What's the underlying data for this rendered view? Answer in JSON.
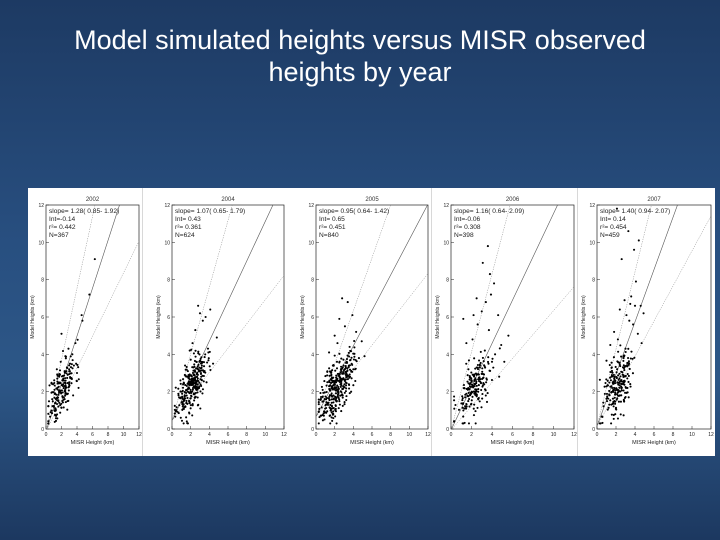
{
  "slide": {
    "title_line1": "Model simulated heights versus MISR observed",
    "title_line2": "heights by year"
  },
  "chart_data": [
    {
      "type": "scatter",
      "title": "2002",
      "xlabel": "MISR Height (km)",
      "ylabel": "Model Heights (km)",
      "xlim": [
        0,
        12
      ],
      "ylim": [
        0,
        12
      ],
      "xticks": [
        0,
        2,
        4,
        6,
        8,
        10,
        12
      ],
      "yticks": [
        0,
        2,
        4,
        6,
        8,
        10,
        12
      ],
      "stats": [
        "slope= 1.28( 0.85- 1.92)",
        "Int=-0.14",
        "r²= 0.442",
        "N=367"
      ],
      "fit": {
        "slope": 1.28,
        "intercept": -0.14,
        "slope_low": 0.85,
        "slope_high": 1.92
      },
      "points": [
        [
          1.8,
          2.0
        ],
        [
          2.2,
          2.3
        ],
        [
          1.5,
          1.7
        ],
        [
          2.8,
          2.9
        ],
        [
          3.1,
          3.5
        ],
        [
          3.6,
          3.4
        ],
        [
          2.5,
          3.9
        ],
        [
          1.2,
          1.4
        ],
        [
          0.8,
          1.6
        ],
        [
          2.9,
          4.3
        ],
        [
          3.4,
          4.0
        ],
        [
          2.3,
          2.6
        ],
        [
          1.1,
          2.1
        ],
        [
          1.7,
          2.8
        ],
        [
          2.6,
          1.9
        ],
        [
          3.8,
          4.6
        ],
        [
          4.2,
          2.2
        ],
        [
          3.5,
          1.8
        ],
        [
          5.6,
          7.2
        ],
        [
          6.3,
          9.1
        ],
        [
          4.7,
          5.8
        ],
        [
          2.0,
          5.1
        ],
        [
          1.6,
          1.2
        ],
        [
          0.6,
          0.9
        ],
        [
          1.4,
          3.2
        ],
        [
          3.0,
          2.5
        ],
        [
          2.4,
          3.1
        ],
        [
          1.9,
          3.6
        ],
        [
          0.9,
          2.4
        ],
        [
          4.0,
          3.0
        ],
        [
          3.3,
          2.7
        ],
        [
          4.6,
          6.1
        ],
        [
          2.1,
          1.5
        ],
        [
          1.3,
          0.7
        ],
        [
          2.7,
          3.3
        ]
      ],
      "cluster": {
        "cx": 2.0,
        "cy": 2.1,
        "sx": 0.9,
        "sy": 0.9,
        "n": 170,
        "seed": 11
      }
    },
    {
      "type": "scatter",
      "title": "2004",
      "xlabel": "MISR Height (km)",
      "ylabel": "Model Heights (km)",
      "xlim": [
        0,
        12
      ],
      "ylim": [
        0,
        12
      ],
      "xticks": [
        0,
        2,
        4,
        6,
        8,
        10,
        12
      ],
      "yticks": [
        0,
        2,
        4,
        6,
        8,
        10,
        12
      ],
      "stats": [
        "slope= 1.07( 0.65- 1.79)",
        "Int= 0.43",
        "r²= 0.361",
        "N=624"
      ],
      "fit": {
        "slope": 1.07,
        "intercept": 0.43,
        "slope_low": 0.65,
        "slope_high": 1.79
      },
      "points": [
        [
          2.5,
          5.3
        ],
        [
          3.0,
          6.2
        ],
        [
          3.6,
          6.0
        ],
        [
          2.8,
          6.6
        ],
        [
          4.1,
          6.4
        ],
        [
          3.3,
          5.8
        ],
        [
          2.2,
          4.6
        ],
        [
          1.9,
          4.2
        ],
        [
          3.9,
          4.1
        ],
        [
          4.4,
          3.5
        ],
        [
          1.4,
          3.4
        ],
        [
          3.1,
          3.0
        ],
        [
          2.6,
          3.6
        ],
        [
          1.7,
          3.1
        ],
        [
          0.9,
          2.6
        ],
        [
          3.7,
          2.5
        ],
        [
          4.8,
          4.9
        ],
        [
          2.3,
          2.9
        ],
        [
          1.2,
          1.3
        ],
        [
          0.7,
          1.8
        ]
      ],
      "cluster": {
        "cx": 2.1,
        "cy": 2.3,
        "sx": 0.8,
        "sy": 0.8,
        "n": 280,
        "seed": 23
      }
    },
    {
      "type": "scatter",
      "title": "2005",
      "xlabel": "MISR Height (km)",
      "ylabel": "Model Heights (km)",
      "xlim": [
        0,
        12
      ],
      "ylim": [
        0,
        12
      ],
      "xticks": [
        0,
        2,
        4,
        6,
        8,
        10,
        12
      ],
      "yticks": [
        0,
        2,
        4,
        6,
        8,
        10,
        12
      ],
      "stats": [
        "slope= 0.95( 0.64- 1.42)",
        "Int= 0.65",
        "r²= 0.451",
        "N=840"
      ],
      "fit": {
        "slope": 0.95,
        "intercept": 0.65,
        "slope_low": 0.64,
        "slope_high": 1.42
      },
      "points": [
        [
          2.8,
          7.0
        ],
        [
          3.4,
          6.8
        ],
        [
          2.5,
          5.9
        ],
        [
          3.9,
          6.1
        ],
        [
          4.3,
          5.2
        ],
        [
          3.1,
          5.5
        ],
        [
          4.9,
          4.7
        ],
        [
          2.0,
          5.0
        ],
        [
          4.6,
          3.8
        ],
        [
          3.6,
          4.4
        ],
        [
          5.2,
          3.9
        ],
        [
          4.0,
          3.2
        ],
        [
          1.4,
          4.1
        ],
        [
          2.3,
          4.6
        ],
        [
          3.3,
          3.6
        ]
      ],
      "cluster": {
        "cx": 2.2,
        "cy": 2.3,
        "sx": 0.9,
        "sy": 0.9,
        "n": 330,
        "seed": 37
      }
    },
    {
      "type": "scatter",
      "title": "2006",
      "xlabel": "MISR Height (km)",
      "ylabel": "Model Heights (km)",
      "xlim": [
        0,
        12
      ],
      "ylim": [
        0,
        12
      ],
      "xticks": [
        0,
        2,
        4,
        6,
        8,
        10,
        12
      ],
      "yticks": [
        0,
        2,
        4,
        6,
        8,
        10,
        12
      ],
      "stats": [
        "slope= 1.16( 0.64- 2.09)",
        "Int=-0.06",
        "r²= 0.308",
        "N=398"
      ],
      "fit": {
        "slope": 1.16,
        "intercept": -0.06,
        "slope_low": 0.64,
        "slope_high": 2.09
      },
      "points": [
        [
          3.6,
          9.8
        ],
        [
          3.1,
          8.9
        ],
        [
          4.2,
          7.8
        ],
        [
          3.9,
          7.2
        ],
        [
          3.4,
          6.8
        ],
        [
          2.5,
          7.0
        ],
        [
          4.6,
          6.1
        ],
        [
          3.0,
          6.3
        ],
        [
          2.6,
          5.6
        ],
        [
          5.6,
          5.0
        ],
        [
          4.9,
          4.5
        ],
        [
          2.1,
          4.8
        ],
        [
          3.7,
          5.3
        ],
        [
          4.3,
          4.0
        ],
        [
          1.5,
          4.6
        ],
        [
          5.2,
          3.6
        ],
        [
          3.3,
          4.2
        ],
        [
          4.7,
          2.8
        ],
        [
          1.2,
          5.9
        ],
        [
          2.8,
          3.3
        ],
        [
          3.8,
          8.3
        ],
        [
          2.2,
          6.1
        ],
        [
          4.0,
          3.6
        ],
        [
          1.7,
          3.2
        ]
      ],
      "cluster": {
        "cx": 2.3,
        "cy": 2.2,
        "sx": 0.9,
        "sy": 0.9,
        "n": 190,
        "seed": 53
      }
    },
    {
      "type": "scatter",
      "title": "2007",
      "xlabel": "MISR Height (km)",
      "ylabel": "Model Heights (km)",
      "xlim": [
        0,
        12
      ],
      "ylim": [
        0,
        12
      ],
      "xticks": [
        0,
        2,
        4,
        6,
        8,
        10,
        12
      ],
      "yticks": [
        0,
        2,
        4,
        6,
        8,
        10,
        12
      ],
      "stats": [
        "slope= 1.40( 0.94- 2.07)",
        "Int= 0.14",
        "r²= 0.454",
        "N=459"
      ],
      "fit": {
        "slope": 1.4,
        "intercept": 0.14,
        "slope_low": 0.94,
        "slope_high": 2.07
      },
      "points": [
        [
          2.1,
          11.8
        ],
        [
          3.3,
          10.6
        ],
        [
          4.4,
          10.1
        ],
        [
          3.9,
          9.6
        ],
        [
          2.6,
          9.1
        ],
        [
          4.1,
          7.9
        ],
        [
          3.6,
          7.1
        ],
        [
          4.6,
          6.6
        ],
        [
          3.1,
          6.1
        ],
        [
          2.9,
          6.9
        ],
        [
          4.9,
          6.2
        ],
        [
          3.8,
          5.6
        ],
        [
          2.4,
          6.4
        ],
        [
          4.3,
          5.1
        ],
        [
          3.4,
          5.8
        ],
        [
          1.8,
          5.2
        ],
        [
          2.2,
          4.8
        ],
        [
          4.7,
          4.6
        ],
        [
          3.0,
          4.3
        ],
        [
          1.4,
          4.5
        ],
        [
          4.0,
          6.6
        ],
        [
          3.5,
          6.7
        ]
      ],
      "cluster": {
        "cx": 2.2,
        "cy": 2.4,
        "sx": 0.85,
        "sy": 1.05,
        "n": 220,
        "seed": 71
      }
    }
  ]
}
